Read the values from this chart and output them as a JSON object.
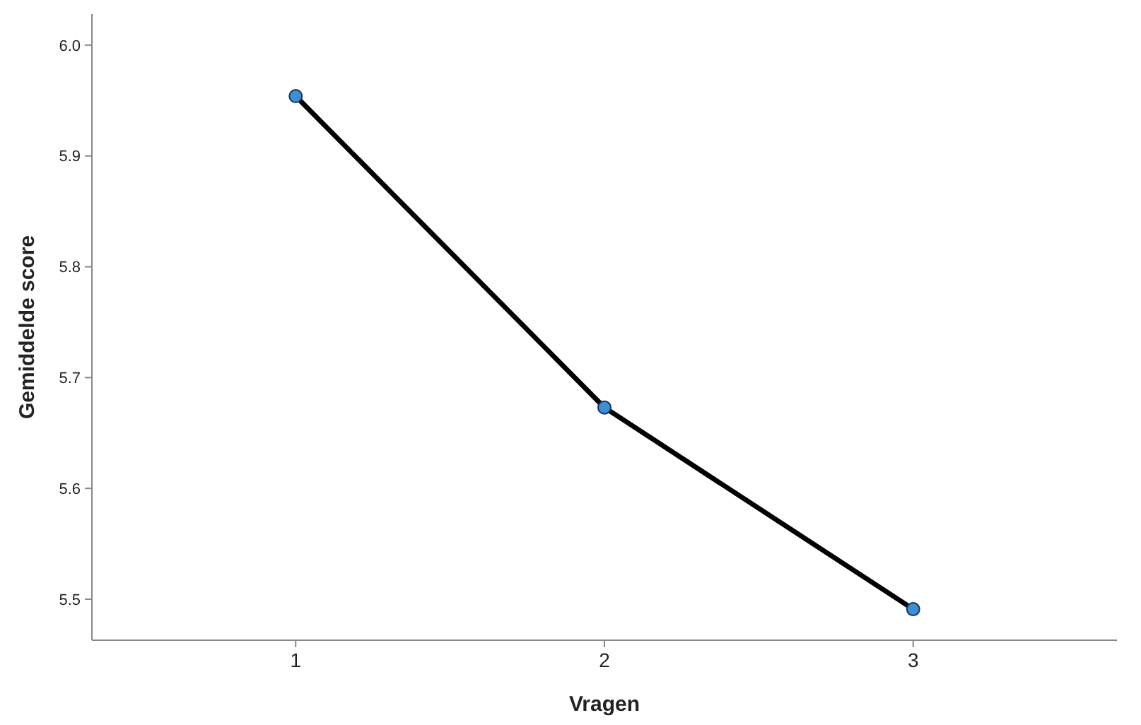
{
  "chart_data": {
    "type": "line",
    "xlabel": "Vragen",
    "ylabel": "Gemiddelde score",
    "categories": [
      "1",
      "2",
      "3"
    ],
    "series": [
      {
        "color": "#000000",
        "values": [
          5.954,
          5.673,
          5.491
        ]
      }
    ],
    "ylim": [
      5.463,
      6.028
    ],
    "yticks": [
      {
        "value": 5.5,
        "label": "5.5"
      },
      {
        "value": 5.6,
        "label": "5.6"
      },
      {
        "value": 5.7,
        "label": "5.7"
      },
      {
        "value": 5.8,
        "label": "5.8"
      },
      {
        "value": 5.9,
        "label": "5.9"
      },
      {
        "value": 6.0,
        "label": "6.0"
      }
    ],
    "grid": false,
    "marker": "circle",
    "line_style": "solid"
  }
}
